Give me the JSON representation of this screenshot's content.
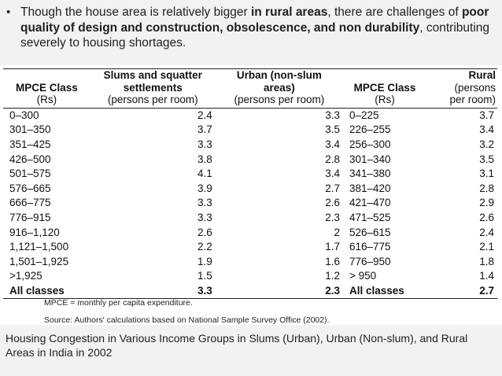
{
  "bullet": {
    "symbol": "•",
    "parts": [
      {
        "text": "Though the house area is relatively bigger ",
        "bold": false
      },
      {
        "text": "in rural areas",
        "bold": true
      },
      {
        "text": ", there are challenges of ",
        "bold": false
      },
      {
        "text": "poor quality of design and construction, obsolescence, and non durability",
        "bold": true
      },
      {
        "text": ", contributing severely to housing shortages.",
        "bold": false
      }
    ]
  },
  "table": {
    "headers": {
      "mpce1_bold": "MPCE Class",
      "mpce1_sub": "(Rs)",
      "slum_bold_1": "Slums and squatter",
      "slum_bold_2": "settlements",
      "slum_sub": "(persons per room)",
      "urban_bold_1": "Urban (non-slum",
      "urban_bold_2": "areas)",
      "urban_sub": "(persons per room)",
      "mpce2_bold": "MPCE Class",
      "mpce2_sub": "(Rs)",
      "rural_bold": "Rural",
      "rural_sub_1": "(persons",
      "rural_sub_2": "per room)"
    },
    "rows": [
      [
        "0–300",
        "2.4",
        "3.3",
        "0–225",
        "3.7"
      ],
      [
        "301–350",
        "3.7",
        "3.5",
        "226–255",
        "3.4"
      ],
      [
        "351–425",
        "3.3",
        "3.4",
        "256–300",
        "3.2"
      ],
      [
        "426–500",
        "3.8",
        "2.8",
        "301–340",
        "3.5"
      ],
      [
        "501–575",
        "4.1",
        "3.4",
        "341–380",
        "3.1"
      ],
      [
        "576–665",
        "3.9",
        "2.7",
        "381–420",
        "2.8"
      ],
      [
        "666–775",
        "3.3",
        "2.6",
        "421–470",
        "2.9"
      ],
      [
        "776–915",
        "3.3",
        "2.3",
        "471–525",
        "2.6"
      ],
      [
        "916–1,120",
        "2.6",
        "2",
        "526–615",
        "2.4"
      ],
      [
        "1,121–1,500",
        "2.2",
        "1.7",
        "616–775",
        "2.1"
      ],
      [
        "1,501–1,925",
        "1.9",
        "1.6",
        "776–950",
        "1.8"
      ],
      [
        ">1,925",
        "1.5",
        "1.2",
        "> 950",
        "1.4"
      ]
    ],
    "total": [
      "All classes",
      "3.3",
      "2.3",
      "All classes",
      "2.7"
    ],
    "note": "MPCE = monthly per capita expenditure.",
    "source": "Source: Authors' calculations based on National Sample Survey Office (2002)."
  },
  "caption": "Housing Congestion in Various Income Groups in Slums (Urban), Urban (Non-slum), and Rural Areas in India in 2002"
}
